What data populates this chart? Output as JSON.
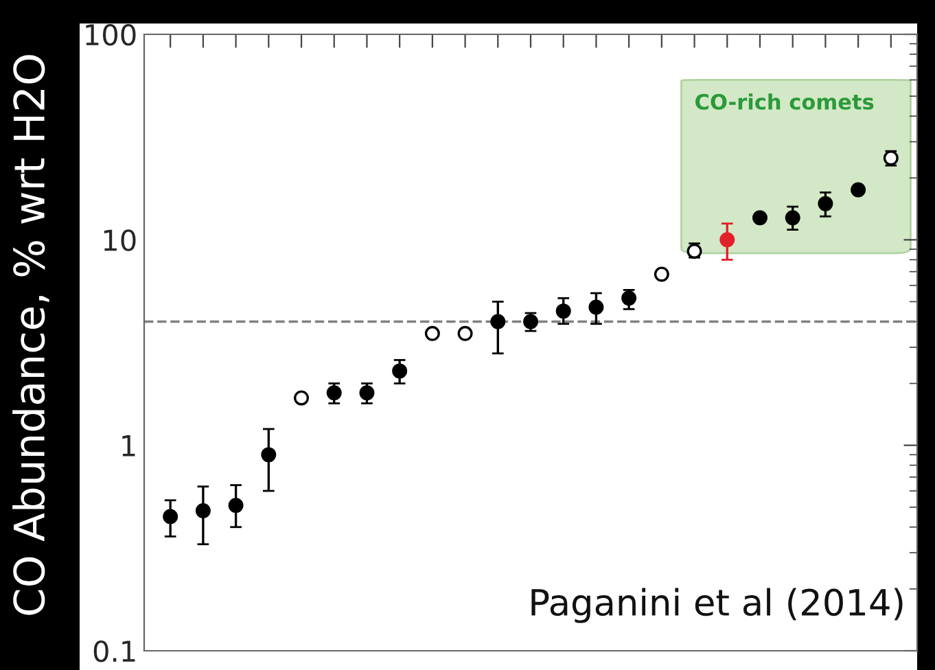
{
  "chart_data": {
    "type": "scatter",
    "ylabel": "CO Abundance, % wrt H2O",
    "categories": [
      null,
      null,
      null,
      null,
      null,
      null,
      null,
      null,
      null,
      null,
      null,
      null,
      null,
      null,
      null,
      null,
      null,
      null,
      null,
      null,
      null,
      null,
      null
    ],
    "series": [
      {
        "color": "#000000",
        "values": [
          0.45,
          0.48,
          0.51,
          0.9,
          null,
          1.8,
          1.8,
          2.3,
          null,
          null,
          4.0,
          4.0,
          4.5,
          4.7,
          5.2,
          null,
          null,
          null,
          12.8,
          12.8,
          15,
          17.5,
          null
        ],
        "errors": [
          [
            0.36,
            0.54
          ],
          [
            0.33,
            0.63
          ],
          [
            0.4,
            0.64
          ],
          [
            0.6,
            1.2
          ],
          null,
          [
            1.6,
            2.0
          ],
          [
            1.6,
            2.0
          ],
          [
            2.0,
            2.6
          ],
          null,
          null,
          [
            2.8,
            5.0
          ],
          [
            3.6,
            4.4
          ],
          [
            3.9,
            5.2
          ],
          [
            3.9,
            5.5
          ],
          [
            4.6,
            5.7
          ],
          null,
          null,
          null,
          null,
          [
            11.2,
            14.5
          ],
          [
            13,
            17
          ],
          null,
          null
        ]
      },
      {
        "color": "#ffffff",
        "values": [
          null,
          null,
          null,
          null,
          1.7,
          null,
          null,
          null,
          3.5,
          3.5,
          null,
          null,
          null,
          null,
          null,
          6.8,
          8.8,
          null,
          null,
          null,
          null,
          null,
          25
        ],
        "errors": [
          null,
          null,
          null,
          null,
          null,
          null,
          null,
          null,
          null,
          null,
          null,
          null,
          null,
          null,
          null,
          null,
          [
            8.2,
            9.6
          ],
          null,
          null,
          null,
          null,
          null,
          [
            23,
            27
          ]
        ]
      },
      {
        "color": "#e0202a",
        "values": [
          null,
          null,
          null,
          null,
          null,
          null,
          null,
          null,
          null,
          null,
          null,
          null,
          null,
          null,
          null,
          null,
          null,
          10,
          null,
          null,
          null,
          null,
          null
        ],
        "errors": [
          null,
          null,
          null,
          null,
          null,
          null,
          null,
          null,
          null,
          null,
          null,
          null,
          null,
          null,
          null,
          null,
          null,
          [
            8,
            12
          ],
          null,
          null,
          null,
          null,
          null
        ]
      }
    ],
    "log": "y",
    "ylim": [
      0.1,
      100
    ],
    "yticks": [
      0.1,
      1,
      10,
      100
    ],
    "marker": "circle",
    "grid": false,
    "legend": false,
    "tick_labels": "y",
    "ref_lines": [
      {
        "axis": "y",
        "value": 4,
        "color": "#808080",
        "line_style": "dashed"
      }
    ],
    "annotations": [
      "CO-rich comets",
      "Paganini et al (2014)"
    ]
  }
}
